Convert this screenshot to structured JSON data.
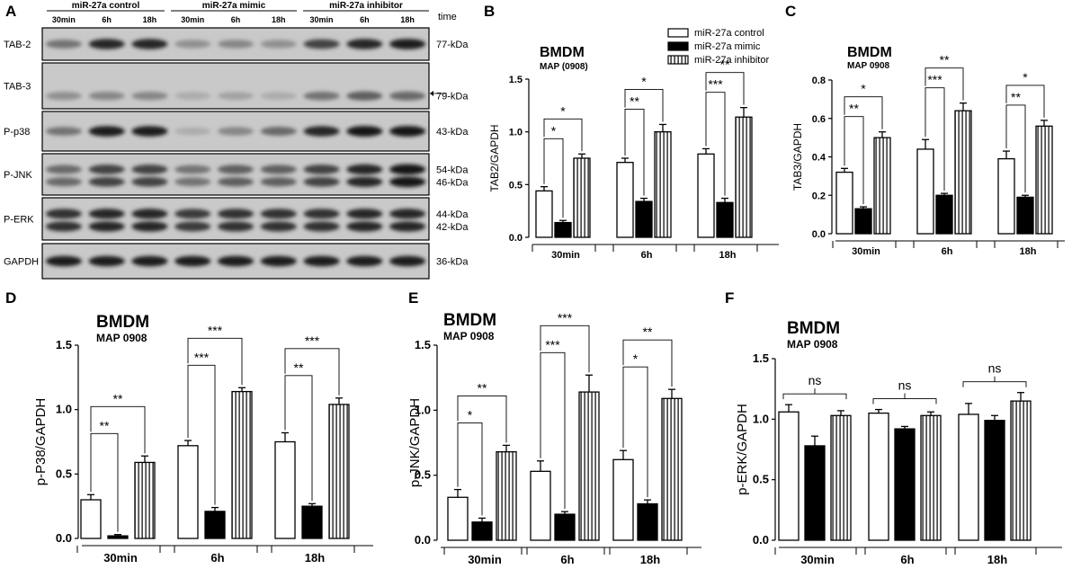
{
  "panel_a": {
    "label": "A",
    "groups": [
      "miR-27a control",
      "miR-27a mimic",
      "miR-27a inhibitor"
    ],
    "lanes": [
      "30min",
      "6h",
      "18h",
      "30min",
      "6h",
      "18h",
      "30min",
      "6h",
      "18h"
    ],
    "time_label": "time",
    "blots": [
      {
        "name": "TAB-2",
        "kda": [
          "77-kDa"
        ],
        "intensity": [
          0.45,
          0.85,
          0.85,
          0.3,
          0.35,
          0.3,
          0.7,
          0.85,
          0.9
        ]
      },
      {
        "name": "TAB-3",
        "kda": [
          "79-kDa"
        ],
        "intensity": [
          0.3,
          0.35,
          0.35,
          0.15,
          0.2,
          0.15,
          0.45,
          0.55,
          0.5
        ]
      },
      {
        "name": "P-p38",
        "kda": [
          "43-kDa"
        ],
        "intensity": [
          0.45,
          0.9,
          0.9,
          0.15,
          0.35,
          0.5,
          0.85,
          0.95,
          0.95
        ]
      },
      {
        "name": "P-JNK",
        "kda": [
          "54-kDa",
          "46-kDa"
        ],
        "intensity": [
          0.5,
          0.7,
          0.7,
          0.45,
          0.55,
          0.55,
          0.7,
          0.85,
          0.95
        ]
      },
      {
        "name": "P-ERK",
        "kda": [
          "44-kDa",
          "42-kDa"
        ],
        "intensity": [
          0.8,
          0.85,
          0.85,
          0.75,
          0.8,
          0.8,
          0.8,
          0.85,
          0.85
        ]
      },
      {
        "name": "GAPDH",
        "kda": [
          "36-kDa"
        ],
        "intensity": [
          0.9,
          0.9,
          0.9,
          0.9,
          0.9,
          0.9,
          0.9,
          0.9,
          0.9
        ]
      }
    ]
  },
  "legend": [
    "miR-27a control",
    "miR-27a mimic",
    "miR-27a inhibitor"
  ],
  "chart_data": [
    {
      "panel": "B",
      "type": "bar",
      "title": "BMDM",
      "subtitle": "MAP (0908)",
      "ylabel": "TAB2/GAPDH",
      "ylim": [
        0,
        1.5
      ],
      "yticks": [
        "0.0",
        "0.5",
        "1.0",
        "1.5"
      ],
      "categories": [
        "30min",
        "6h",
        "18h"
      ],
      "series": [
        {
          "name": "miR-27a control",
          "values": [
            0.44,
            0.71,
            0.79
          ],
          "errors": [
            0.04,
            0.04,
            0.05
          ]
        },
        {
          "name": "miR-27a mimic",
          "values": [
            0.14,
            0.34,
            0.33
          ],
          "errors": [
            0.02,
            0.03,
            0.04
          ]
        },
        {
          "name": "miR-27a inhibitor",
          "values": [
            0.75,
            1.0,
            1.14
          ],
          "errors": [
            0.04,
            0.07,
            0.09
          ]
        }
      ],
      "significance": [
        [
          "*",
          "*"
        ],
        [
          "**",
          "*"
        ],
        [
          "***",
          "**"
        ]
      ]
    },
    {
      "panel": "C",
      "type": "bar",
      "title": "BMDM",
      "subtitle": "MAP 0908",
      "ylabel": "TAB3/GAPDH",
      "ylim": [
        0,
        0.8
      ],
      "yticks": [
        "0.0",
        "0.2",
        "0.4",
        "0.6",
        "0.8"
      ],
      "categories": [
        "30min",
        "6h",
        "18h"
      ],
      "series": [
        {
          "name": "miR-27a control",
          "values": [
            0.32,
            0.44,
            0.39
          ],
          "errors": [
            0.02,
            0.05,
            0.04
          ]
        },
        {
          "name": "miR-27a mimic",
          "values": [
            0.13,
            0.2,
            0.19
          ],
          "errors": [
            0.01,
            0.01,
            0.01
          ]
        },
        {
          "name": "miR-27a inhibitor",
          "values": [
            0.5,
            0.64,
            0.56
          ],
          "errors": [
            0.03,
            0.04,
            0.03
          ]
        }
      ],
      "significance": [
        [
          "**",
          "*"
        ],
        [
          "***",
          "**"
        ],
        [
          "**",
          "*"
        ]
      ]
    },
    {
      "panel": "D",
      "type": "bar",
      "title": "BMDM",
      "subtitle": "MAP 0908",
      "ylabel": "p-P38/GAPDH",
      "ylim": [
        0,
        1.5
      ],
      "yticks": [
        "0.0",
        "0.5",
        "1.0",
        "1.5"
      ],
      "categories": [
        "30min",
        "6h",
        "18h"
      ],
      "series": [
        {
          "name": "miR-27a control",
          "values": [
            0.3,
            0.72,
            0.75
          ],
          "errors": [
            0.04,
            0.04,
            0.07
          ]
        },
        {
          "name": "miR-27a mimic",
          "values": [
            0.02,
            0.21,
            0.25
          ],
          "errors": [
            0.01,
            0.03,
            0.02
          ]
        },
        {
          "name": "miR-27a inhibitor",
          "values": [
            0.59,
            1.14,
            1.04
          ],
          "errors": [
            0.05,
            0.03,
            0.05
          ]
        }
      ],
      "significance": [
        [
          "**",
          "**"
        ],
        [
          "***",
          "***"
        ],
        [
          "**",
          "***"
        ]
      ]
    },
    {
      "panel": "E",
      "type": "bar",
      "title": "BMDM",
      "subtitle": "MAP 0908",
      "ylabel": "p-JNK/GAPDH",
      "ylim": [
        0,
        1.5
      ],
      "yticks": [
        "0.0",
        "0.5",
        "1.0",
        "1.5"
      ],
      "categories": [
        "30min",
        "6h",
        "18h"
      ],
      "series": [
        {
          "name": "miR-27a control",
          "values": [
            0.33,
            0.53,
            0.62
          ],
          "errors": [
            0.06,
            0.08,
            0.07
          ]
        },
        {
          "name": "miR-27a mimic",
          "values": [
            0.14,
            0.2,
            0.28
          ],
          "errors": [
            0.03,
            0.02,
            0.03
          ]
        },
        {
          "name": "miR-27a inhibitor",
          "values": [
            0.68,
            1.14,
            1.09
          ],
          "errors": [
            0.05,
            0.13,
            0.07
          ]
        }
      ],
      "significance": [
        [
          "*",
          "**"
        ],
        [
          "***",
          "***"
        ],
        [
          "*",
          "**"
        ]
      ]
    },
    {
      "panel": "F",
      "type": "bar",
      "title": "BMDM",
      "subtitle": "MAP 0908",
      "ylabel": "p-ERK/GAPDH",
      "ylim": [
        0,
        1.5
      ],
      "yticks": [
        "0.0",
        "0.5",
        "1.0",
        "1.5"
      ],
      "categories": [
        "30min",
        "6h",
        "18h"
      ],
      "series": [
        {
          "name": "miR-27a control",
          "values": [
            1.06,
            1.05,
            1.04
          ],
          "errors": [
            0.06,
            0.03,
            0.09
          ]
        },
        {
          "name": "miR-27a mimic",
          "values": [
            0.78,
            0.92,
            0.99
          ],
          "errors": [
            0.08,
            0.02,
            0.04
          ]
        },
        {
          "name": "miR-27a inhibitor",
          "values": [
            1.03,
            1.03,
            1.15
          ],
          "errors": [
            0.04,
            0.03,
            0.07
          ]
        }
      ],
      "significance": [
        [
          "ns"
        ],
        [
          "ns"
        ],
        [
          "ns"
        ]
      ]
    }
  ]
}
